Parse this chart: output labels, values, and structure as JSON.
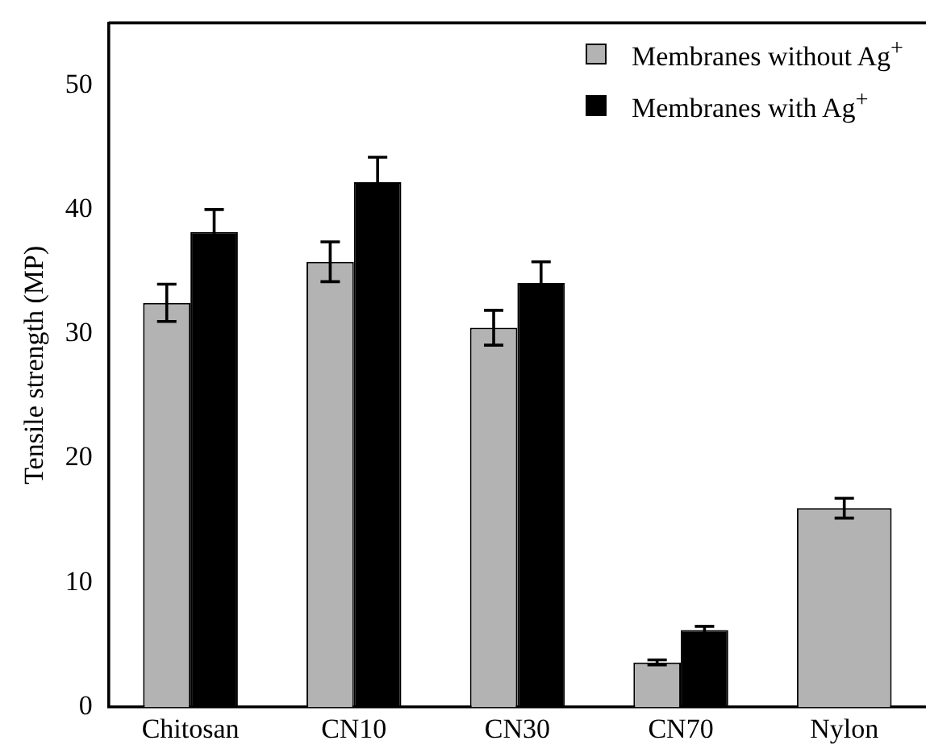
{
  "chart_data": {
    "type": "bar",
    "ylabel": "Tensile strength (MP)",
    "categories": [
      "Chitosan",
      "CN10",
      "CN30",
      "CN70",
      "Nylon"
    ],
    "series": [
      {
        "name": "Membranes without Ag$^{+}$",
        "color": "#b3b3b3",
        "values": [
          32.5,
          35.8,
          30.5,
          3.6,
          16.0
        ],
        "errors": [
          1.5,
          1.6,
          1.4,
          0.2,
          0.8
        ]
      },
      {
        "name": "Membranes with Ag$^{+}$",
        "color": "#000000",
        "values": [
          38.2,
          42.2,
          34.1,
          6.2,
          null
        ],
        "errors": [
          1.8,
          2.0,
          1.7,
          0.3,
          null
        ]
      }
    ],
    "ylim": [
      0,
      55
    ],
    "yticks": [
      0,
      10,
      20,
      30,
      40,
      50
    ],
    "grid": false,
    "legend": "top right"
  }
}
